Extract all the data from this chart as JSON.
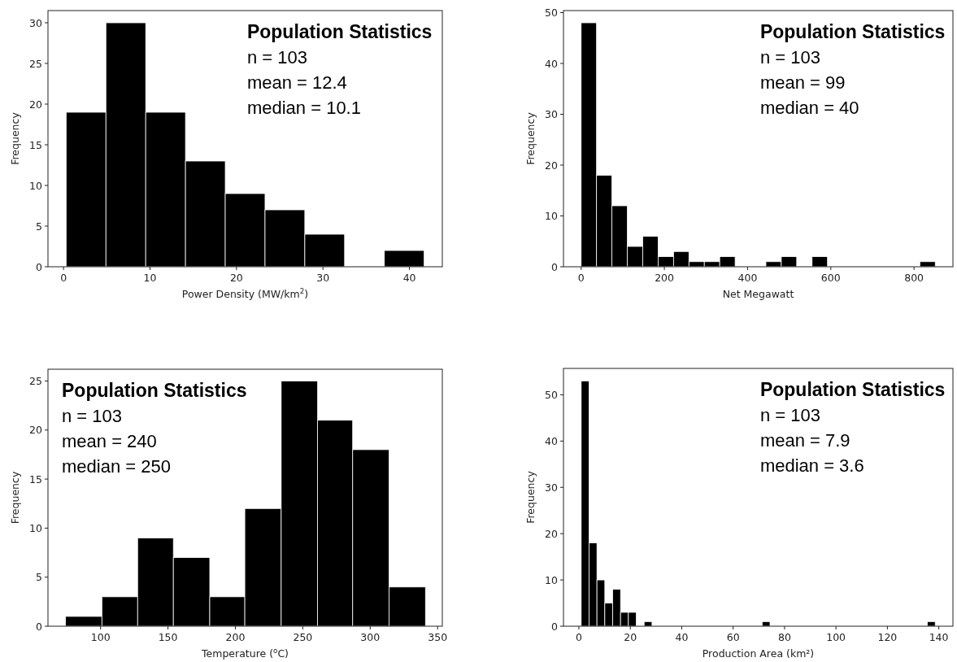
{
  "chart_data": [
    {
      "type": "histogram",
      "title": "Population Statistics",
      "annotations": [
        "n = 103",
        "mean = 12.4",
        "median = 10.1"
      ],
      "xlabel": "Power Density (MW/km$^{2}$)",
      "ylabel": "Frequency",
      "color": "#000000",
      "bins": [
        0.3,
        4.9,
        9.5,
        14.1,
        18.7,
        23.3,
        27.9,
        32.5,
        37.1,
        41.7
      ],
      "values": [
        19,
        30,
        19,
        13,
        9,
        7,
        4,
        0,
        2
      ],
      "xlim": [
        -1.8,
        43.8
      ],
      "xticks": [
        0,
        10,
        20,
        30,
        40
      ],
      "ylim": [
        0,
        31.5
      ],
      "yticks": [
        0,
        5,
        10,
        15,
        20,
        25,
        30
      ]
    },
    {
      "type": "histogram",
      "title": "Population Statistics",
      "annotations": [
        "n = 103",
        "mean = 99",
        "median = 40"
      ],
      "xlabel": "Net Megawatt",
      "ylabel": "Frequency",
      "color": "#000000",
      "bins": [
        0,
        37,
        74,
        111,
        148,
        185,
        222,
        259,
        296,
        333,
        370,
        407,
        444,
        481,
        518,
        555,
        592,
        629,
        666,
        703,
        740,
        777,
        814,
        851
      ],
      "values": [
        48,
        18,
        12,
        4,
        6,
        2,
        3,
        1,
        1,
        2,
        0,
        0,
        1,
        2,
        0,
        2,
        0,
        0,
        0,
        0,
        0,
        0,
        1
      ],
      "xlim": [
        -42.5,
        893.5
      ],
      "xticks": [
        0,
        200,
        400,
        600,
        800
      ],
      "ylim": [
        0,
        50.4
      ],
      "yticks": [
        0,
        10,
        20,
        30,
        40,
        50
      ]
    },
    {
      "type": "histogram",
      "title": "Population Statistics",
      "annotations": [
        "n = 103",
        "mean = 240",
        "median = 250"
      ],
      "xlabel": "Temperature ($^{o}$C)",
      "ylabel": "Frequency",
      "color": "#000000",
      "bins": [
        74,
        101,
        127.5,
        154,
        181,
        207,
        234,
        261,
        287,
        314,
        341
      ],
      "values": [
        1,
        3,
        9,
        7,
        3,
        12,
        25,
        21,
        18,
        4
      ],
      "xlim": [
        61,
        353.5
      ],
      "xticks": [
        100,
        150,
        200,
        250,
        300,
        350
      ],
      "ylim": [
        0,
        26.2
      ],
      "yticks": [
        0,
        5,
        10,
        15,
        20,
        25
      ]
    },
    {
      "type": "histogram",
      "title": "Population Statistics",
      "annotations": [
        "n = 103",
        "mean = 7.9",
        "median = 3.6"
      ],
      "xlabel": "Production Area (km²)",
      "ylabel": "Frequency",
      "color": "#000000",
      "bins": [
        0.9,
        3.96,
        7.02,
        10.08,
        13.14,
        16.2,
        19.26,
        22.32,
        25.38,
        28.44,
        31.5,
        34.56,
        37.62,
        40.68,
        43.74,
        46.8,
        49.86,
        52.92,
        55.98,
        59.04,
        62.1,
        65.16,
        68.22,
        71.28,
        74.34,
        77.4,
        80.46,
        83.52,
        86.58,
        89.64,
        92.7,
        95.76,
        98.82,
        101.88,
        104.94,
        108,
        111.06,
        114.12,
        117.18,
        120.24,
        123.3,
        126.36,
        129.42,
        132.48,
        135.54,
        138.6
      ],
      "values": [
        53,
        18,
        10,
        5,
        8,
        3,
        3,
        0,
        1,
        0,
        0,
        0,
        0,
        0,
        0,
        0,
        0,
        0,
        0,
        0,
        0,
        0,
        0,
        1,
        0,
        0,
        0,
        0,
        0,
        0,
        0,
        0,
        0,
        0,
        0,
        0,
        0,
        0,
        0,
        0,
        0,
        0,
        0,
        0,
        1
      ],
      "xlim": [
        -6,
        145.5
      ],
      "xticks": [
        0,
        20,
        40,
        60,
        80,
        100,
        120,
        140
      ],
      "ylim": [
        0,
        55.7
      ],
      "yticks": [
        0,
        10,
        20,
        30,
        40,
        50
      ]
    }
  ]
}
